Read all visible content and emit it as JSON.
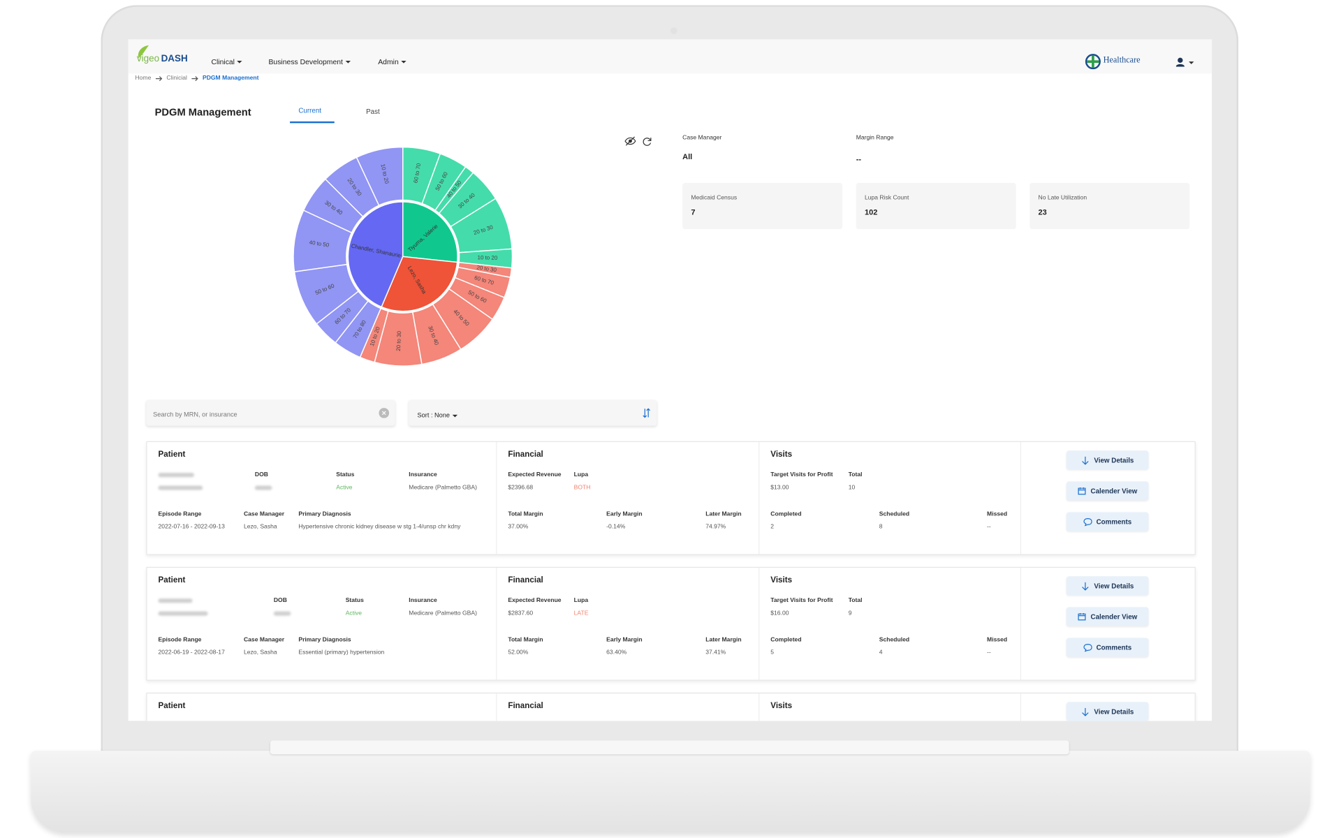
{
  "nav": {
    "logo_main": "vigeo",
    "logo_accent": "DASH",
    "menu": [
      "Clinical",
      "Business Development",
      "Admin"
    ],
    "partner": "Healthcare"
  },
  "breadcrumb": [
    "Home",
    "Clinicial",
    "PDGM Management"
  ],
  "page": {
    "title": "PDGM Management",
    "tabs": [
      "Current",
      "Past"
    ],
    "active_tab": 0
  },
  "chart_data": {
    "type": "sunburst",
    "groups": [
      {
        "name": "Tiyuma, Valerie",
        "color": "#10c88e",
        "child_color": "#44dcaa",
        "categories": [
          "60 to 70",
          "50 to 60",
          "40 to 50",
          "30 to 40",
          "20 to 30",
          "10 to 20"
        ],
        "values": [
          20,
          15,
          5,
          18,
          28,
          10
        ]
      },
      {
        "name": "Lezo, Sasha",
        "color": "#ef5338",
        "child_color": "#f4867a",
        "categories": [
          "20 to 30",
          "60 to 70",
          "50 to 60",
          "40 to 50",
          "30 to 40",
          "20 to 30",
          "10 to 20"
        ],
        "values": [
          5,
          11,
          13,
          23,
          22,
          25,
          8
        ]
      },
      {
        "name": "Chandler, Shanaurie",
        "color": "#6468f2",
        "child_color": "#9195f3",
        "categories": [
          "70 to 80",
          "60 to 70",
          "50 to 60",
          "40 to 50",
          "30 to 40",
          "20 to 30",
          "10 to 20"
        ],
        "values": [
          15,
          14,
          30,
          33,
          20,
          20,
          25
        ]
      }
    ]
  },
  "filters": {
    "case_manager_label": "Case Manager",
    "case_manager": "All",
    "margin_range_label": "Margin Range",
    "margin_range": "--"
  },
  "stats": [
    {
      "label": "Medicaid Census",
      "value": "7"
    },
    {
      "label": "Lupa Risk Count",
      "value": "102"
    },
    {
      "label": "No Late Utilization",
      "value": "23"
    }
  ],
  "search": {
    "placeholder": "Search by MRN, or insurance",
    "sort": "Sort : None"
  },
  "card_labels": {
    "patient": "Patient",
    "dob": "DOB",
    "status": "Status",
    "insurance": "Insurance",
    "episode_range": "Episode Range",
    "case_manager": "Case Manager",
    "primary_diagnosis": "Primary Diagnosis",
    "financial": "Financial",
    "expected_revenue": "Expected Revenue",
    "lupa": "Lupa",
    "total_margin": "Total Margin",
    "early_margin": "Early Margin",
    "later_margin": "Later Margin",
    "visits": "Visits",
    "target_visits": "Target Visits for Profit",
    "total": "Total",
    "completed": "Completed",
    "scheduled": "Scheduled",
    "missed": "Missed",
    "view_details": "View Details",
    "calendar_view": "Calender View",
    "comments": "Comments"
  },
  "cards": [
    {
      "status": "Active",
      "insurance": "Medicare (Palmetto GBA)",
      "episode_range": "2022-07-16 - 2022-09-13",
      "case_manager": "Lezo, Sasha",
      "primary_diagnosis": "Hypertensive chronic kidney disease w stg 1-4/unsp chr kdny",
      "expected_revenue": "$2396.68",
      "lupa": "BOTH",
      "total_margin": "37.00%",
      "early_margin": "-0.14%",
      "later_margin": "74.97%",
      "target_visits": "$13.00",
      "total": "10",
      "completed": "2",
      "scheduled": "8",
      "missed": "--"
    },
    {
      "status": "Active",
      "insurance": "Medicare (Palmetto GBA)",
      "episode_range": "2022-06-19 - 2022-08-17",
      "case_manager": "Lezo, Sasha",
      "primary_diagnosis": "Essential (primary) hypertension",
      "expected_revenue": "$2837.60",
      "lupa": "LATE",
      "total_margin": "52.00%",
      "early_margin": "63.40%",
      "later_margin": "37.41%",
      "target_visits": "$16.00",
      "total": "9",
      "completed": "5",
      "scheduled": "4",
      "missed": "--"
    }
  ]
}
